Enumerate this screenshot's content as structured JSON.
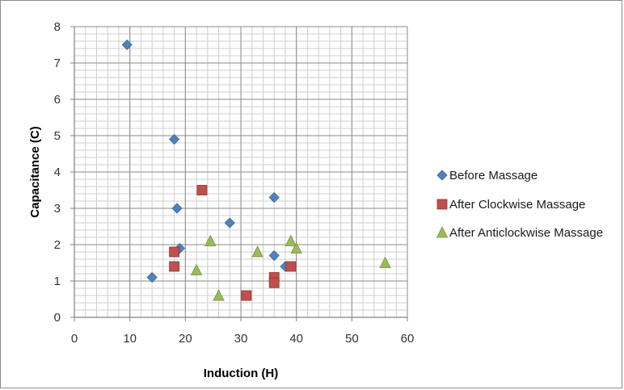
{
  "chart_data": {
    "type": "scatter",
    "title": "",
    "xlabel": "Induction (H)",
    "ylabel": "Capacitance (C)",
    "xlim": [
      0,
      60
    ],
    "ylim": [
      0,
      8
    ],
    "x_ticks": [
      0,
      10,
      20,
      30,
      40,
      50,
      60
    ],
    "y_ticks": [
      0,
      1,
      2,
      3,
      4,
      5,
      6,
      7,
      8
    ],
    "grid": "major and minor",
    "legend_position": "right",
    "series": [
      {
        "name": "Before Massage",
        "marker": "diamond",
        "color": "#4f81bd",
        "points": [
          [
            9.5,
            7.5
          ],
          [
            18,
            4.9
          ],
          [
            18.5,
            3.0
          ],
          [
            28,
            2.6
          ],
          [
            36,
            3.3
          ],
          [
            19,
            1.9
          ],
          [
            14,
            1.1
          ],
          [
            36,
            1.7
          ],
          [
            38,
            1.4
          ]
        ]
      },
      {
        "name": "After Clockwise Massage",
        "marker": "square",
        "color": "#c0504d",
        "points": [
          [
            23,
            3.5
          ],
          [
            18,
            1.8
          ],
          [
            18,
            1.4
          ],
          [
            31,
            0.6
          ],
          [
            36,
            1.1
          ],
          [
            36,
            0.95
          ],
          [
            39,
            1.4
          ]
        ]
      },
      {
        "name": "After Anticlockwise Massage",
        "marker": "triangle",
        "color": "#9bbb59",
        "points": [
          [
            24.5,
            2.1
          ],
          [
            22,
            1.3
          ],
          [
            26,
            0.6
          ],
          [
            33,
            1.8
          ],
          [
            39,
            2.1
          ],
          [
            40,
            1.9
          ],
          [
            56,
            1.5
          ]
        ]
      }
    ]
  }
}
